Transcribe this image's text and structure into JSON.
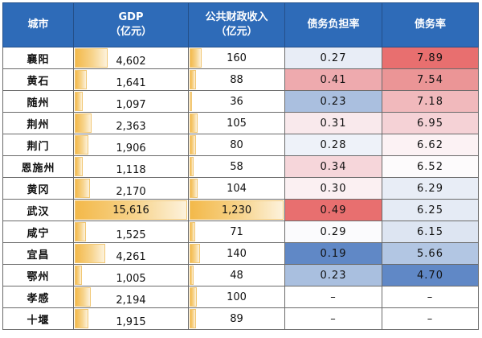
{
  "table": {
    "headers": {
      "city": "城市",
      "gdp_line1": "GDP",
      "gdp_line2": "（亿元）",
      "revenue_line1": "公共财政收入",
      "revenue_line2": "（亿元）",
      "debt_burden": "债务负担率",
      "debt_rate": "债务率"
    },
    "colors": {
      "header_bg": "#2e6bb8",
      "bar_gradient_start": "#f3b94a",
      "bar_gradient_end": "#fdf2dc",
      "heat_high": "#e76b6b",
      "heat_mid": "#ffffff",
      "heat_low": "#5f86c4"
    },
    "max_gdp": 15616,
    "max_revenue": 1230,
    "rows": [
      {
        "city": "襄阳",
        "gdp": "4,602",
        "gdp_num": 4602,
        "revenue": "160",
        "revenue_num": 160,
        "debt_burden": "0.27",
        "debt_burden_bg": "#e8edf6",
        "debt_rate": "7.89",
        "debt_rate_bg": "#e86f6f"
      },
      {
        "city": "黄石",
        "gdp": "1,641",
        "gdp_num": 1641,
        "revenue": "88",
        "revenue_num": 88,
        "debt_burden": "0.41",
        "debt_burden_bg": "#eeaaae",
        "debt_rate": "7.54",
        "debt_rate_bg": "#eb9596"
      },
      {
        "city": "随州",
        "gdp": "1,097",
        "gdp_num": 1097,
        "revenue": "36",
        "revenue_num": 36,
        "debt_burden": "0.23",
        "debt_burden_bg": "#aabfdf",
        "debt_rate": "7.18",
        "debt_rate_bg": "#f1b9bc"
      },
      {
        "city": "荆州",
        "gdp": "2,363",
        "gdp_num": 2363,
        "revenue": "105",
        "revenue_num": 105,
        "debt_burden": "0.31",
        "debt_burden_bg": "#f9e9ec",
        "debt_rate": "6.95",
        "debt_rate_bg": "#f5d2d6"
      },
      {
        "city": "荆门",
        "gdp": "1,906",
        "gdp_num": 1906,
        "revenue": "80",
        "revenue_num": 80,
        "debt_burden": "0.28",
        "debt_burden_bg": "#eef2f9",
        "debt_rate": "6.62",
        "debt_rate_bg": "#fcf2f4"
      },
      {
        "city": "恩施州",
        "gdp": "1,118",
        "gdp_num": 1118,
        "revenue": "58",
        "revenue_num": 58,
        "debt_burden": "0.34",
        "debt_burden_bg": "#f6d6da",
        "debt_rate": "6.52",
        "debt_rate_bg": "#fdfbfc"
      },
      {
        "city": "黄冈",
        "gdp": "2,170",
        "gdp_num": 2170,
        "revenue": "104",
        "revenue_num": 104,
        "debt_burden": "0.30",
        "debt_burden_bg": "#fbf0f2",
        "debt_rate": "6.29",
        "debt_rate_bg": "#e8edf6"
      },
      {
        "city": "武汉",
        "gdp": "15,616",
        "gdp_num": 15616,
        "revenue": "1,230",
        "revenue_num": 1230,
        "debt_burden": "0.49",
        "debt_burden_bg": "#e86f6f",
        "debt_rate": "6.25",
        "debt_rate_bg": "#e5ebf5"
      },
      {
        "city": "咸宁",
        "gdp": "1,525",
        "gdp_num": 1525,
        "revenue": "71",
        "revenue_num": 71,
        "debt_burden": "0.29",
        "debt_burden_bg": "#fbfbfd",
        "debt_rate": "6.15",
        "debt_rate_bg": "#dde5f2"
      },
      {
        "city": "宜昌",
        "gdp": "4,261",
        "gdp_num": 4261,
        "revenue": "140",
        "revenue_num": 140,
        "debt_burden": "0.19",
        "debt_burden_bg": "#6088c6",
        "debt_rate": "5.66",
        "debt_rate_bg": "#b2c6e3"
      },
      {
        "city": "鄂州",
        "gdp": "1,005",
        "gdp_num": 1005,
        "revenue": "48",
        "revenue_num": 48,
        "debt_burden": "0.23",
        "debt_burden_bg": "#a9bfdf",
        "debt_rate": "4.70",
        "debt_rate_bg": "#6088c6"
      },
      {
        "city": "孝感",
        "gdp": "2,194",
        "gdp_num": 2194,
        "revenue": "100",
        "revenue_num": 100,
        "debt_burden": "–",
        "debt_burden_bg": "#ffffff",
        "debt_rate": "–",
        "debt_rate_bg": "#ffffff"
      },
      {
        "city": "十堰",
        "gdp": "1,915",
        "gdp_num": 1915,
        "revenue": "89",
        "revenue_num": 89,
        "debt_burden": "–",
        "debt_burden_bg": "#ffffff",
        "debt_rate": "–",
        "debt_rate_bg": "#ffffff"
      }
    ]
  }
}
